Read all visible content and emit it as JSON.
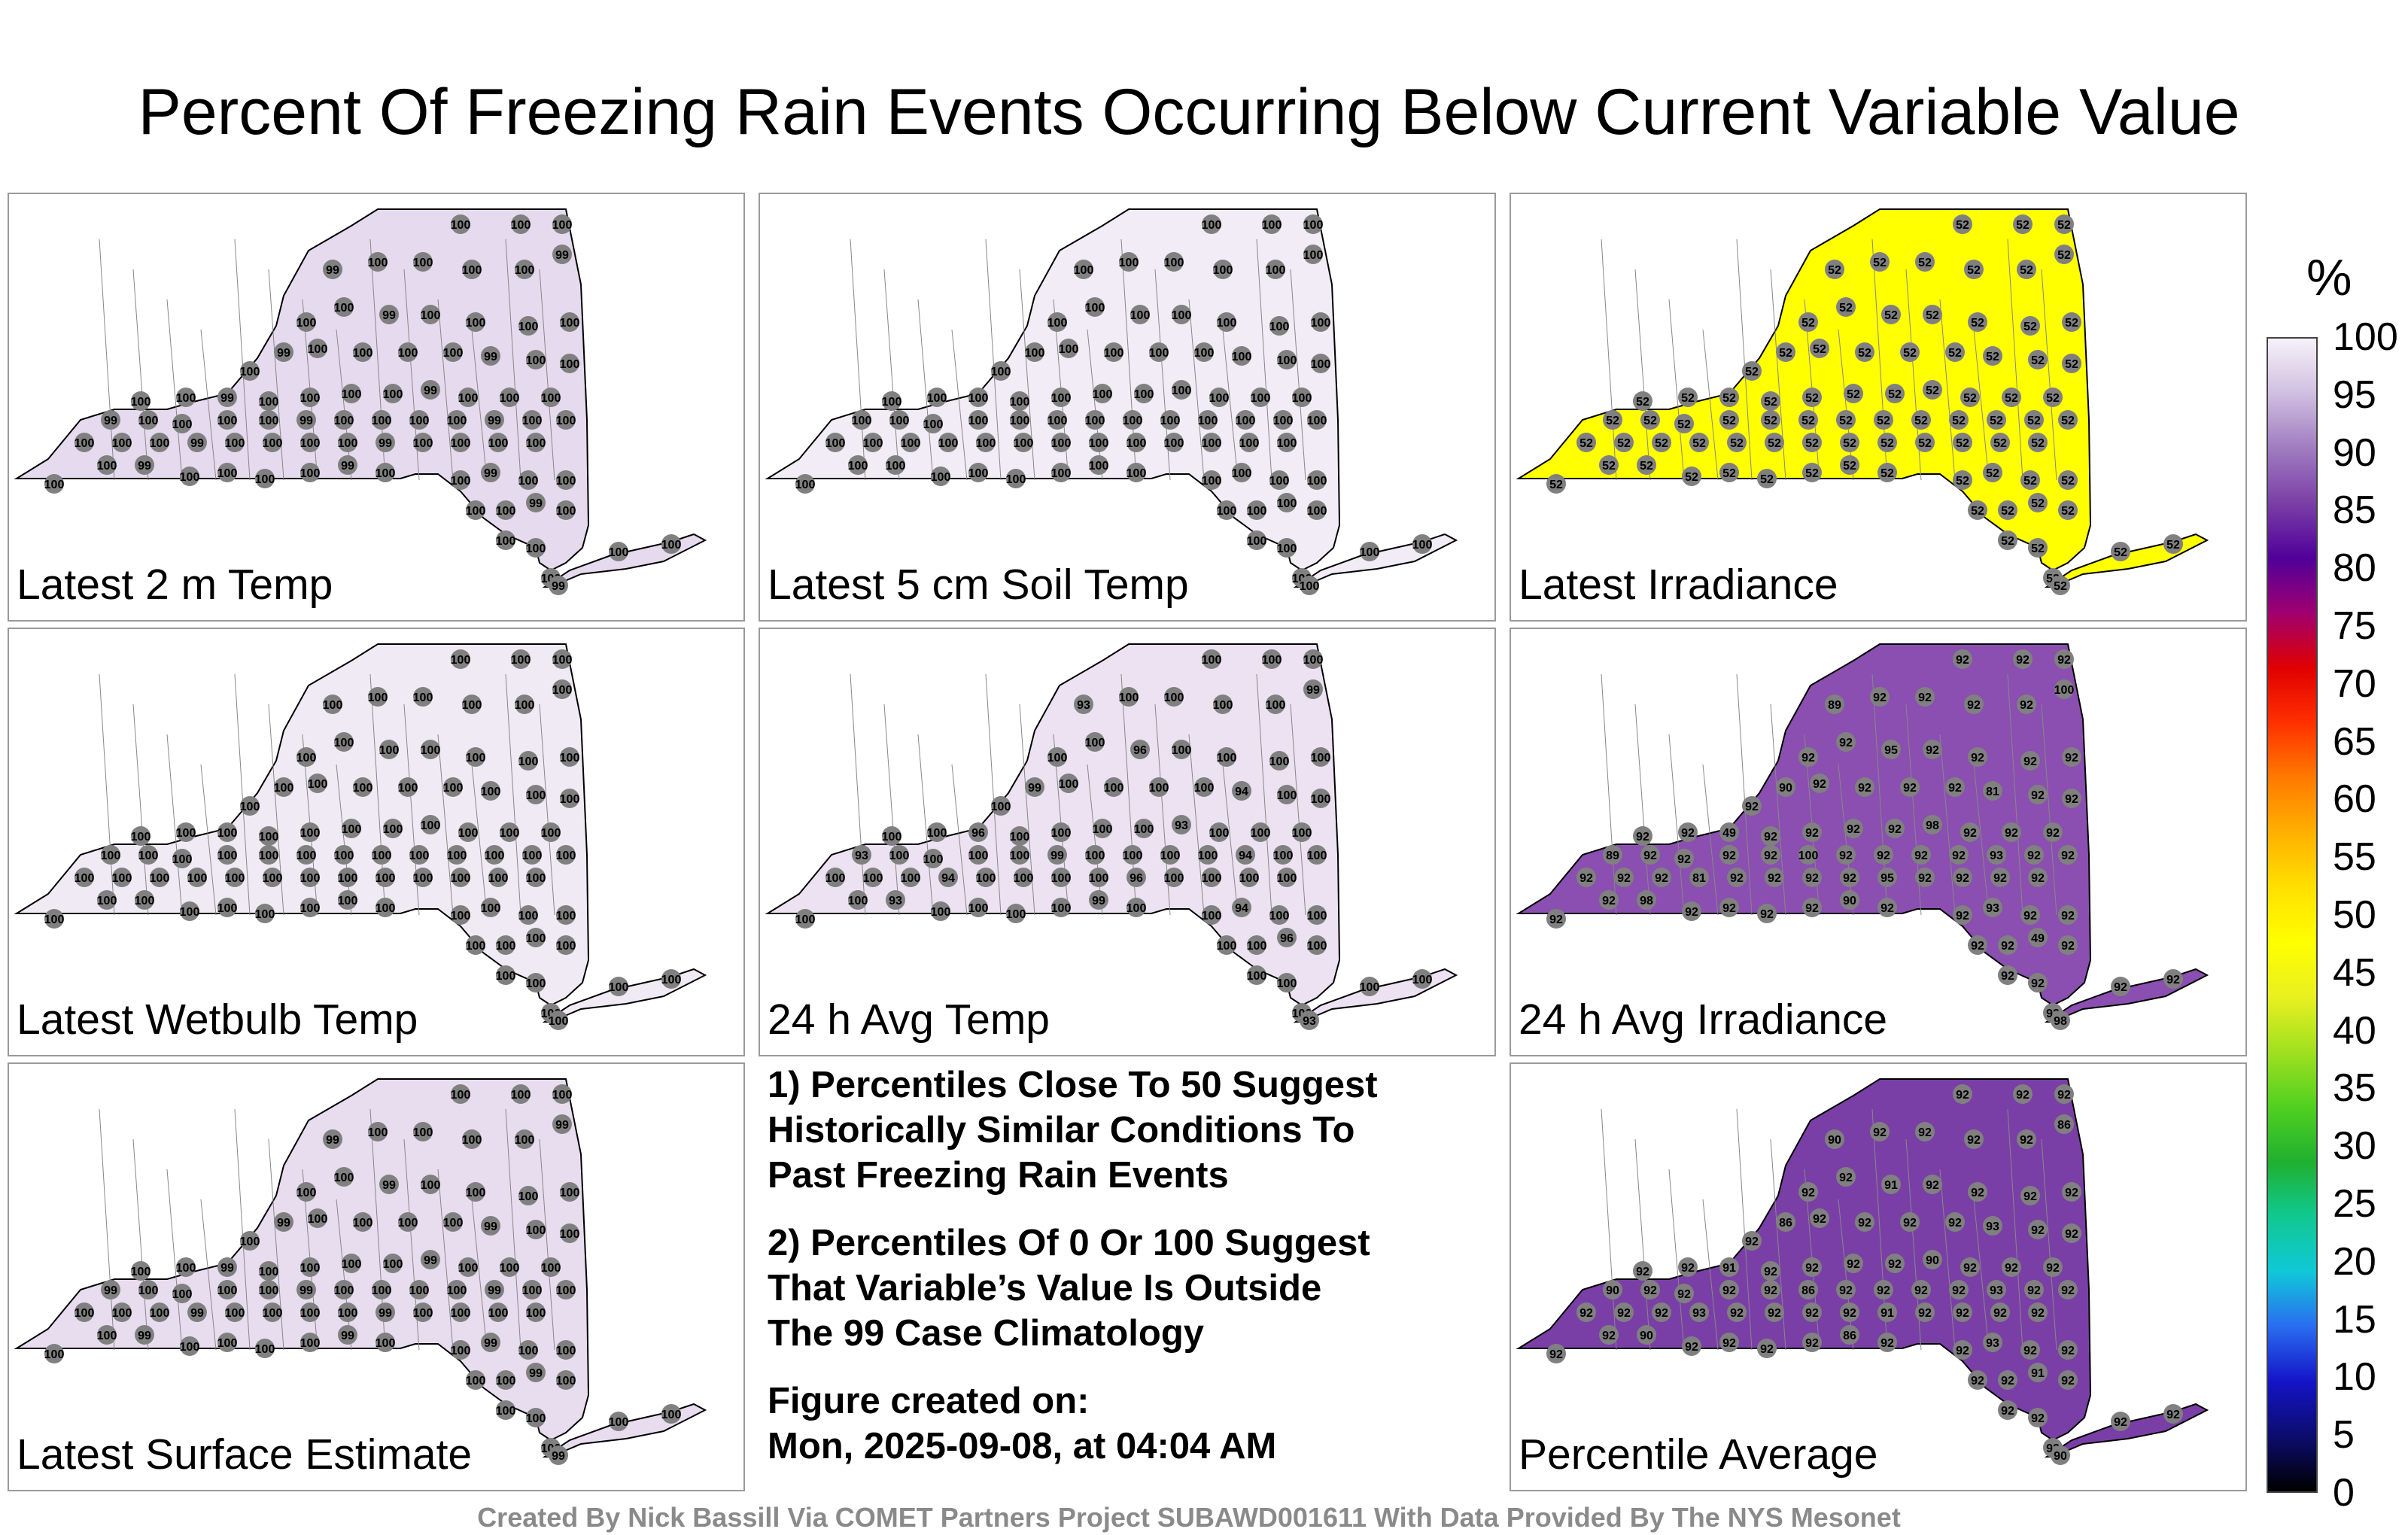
{
  "title": "Percent Of Freezing Rain Events Occurring Below Current Variable Value",
  "panels": [
    {
      "label": "Latest 2 m Temp",
      "fill": "#e6daee",
      "station_value": "100",
      "highlight": [
        "99"
      ]
    },
    {
      "label": "Latest 5 cm Soil Temp",
      "fill": "#f1ecf5",
      "station_value": "100",
      "highlight": []
    },
    {
      "label": "Latest Irradiance",
      "fill": "#ffff00",
      "station_value": "52",
      "highlight": []
    },
    {
      "label": "Latest Wetbulb Temp",
      "fill": "#f0eaf4",
      "station_value": "100",
      "highlight": []
    },
    {
      "label": "24 h Avg Temp",
      "fill": "#ece2f2",
      "station_value": "100",
      "highlight": [
        "94",
        "96",
        "93",
        "99"
      ]
    },
    {
      "label": "24 h Avg Irradiance",
      "fill": "#8a4fb0",
      "station_value": "92",
      "highlight": [
        "93",
        "95",
        "98",
        "100",
        "81",
        "49",
        "89",
        "90"
      ]
    },
    {
      "label": "Latest Surface Estimate",
      "fill": "#e8dcef",
      "station_value": "100",
      "highlight": [
        "99"
      ]
    },
    {
      "label": "Percentile Average",
      "fill": "#7a3fa6",
      "station_value": "92",
      "highlight": [
        "93",
        "91",
        "90",
        "86"
      ]
    }
  ],
  "notes": [
    [
      "1) Percentiles Close To 50 Suggest",
      "Historically Similar Conditions To",
      "Past Freezing Rain Events"
    ],
    [
      "2) Percentiles Of 0 Or 100 Suggest",
      "That Variable’s Value Is Outside",
      "The 99 Case Climatology"
    ],
    [
      "Figure created on:",
      "Mon, 2025-09-08, at 04:04 AM"
    ]
  ],
  "colorbar": {
    "unit": "%",
    "ticks": [
      "100",
      "95",
      "90",
      "85",
      "80",
      "75",
      "70",
      "65",
      "60",
      "55",
      "50",
      "45",
      "40",
      "35",
      "30",
      "25",
      "20",
      "15",
      "10",
      "5",
      "0"
    ],
    "colors": [
      "#000000",
      "#0c0c6e",
      "#1414c8",
      "#2a6cf0",
      "#10c8d8",
      "#10c890",
      "#20b030",
      "#50d020",
      "#a0e020",
      "#e8f020",
      "#ffff00",
      "#ffe000",
      "#ffb000",
      "#ff7a00",
      "#ff3000",
      "#e00000",
      "#a00070",
      "#50009a",
      "#7a3fa6",
      "#a07cc0",
      "#d0bfe0",
      "#f6f2f8"
    ]
  },
  "credit": "Created By Nick Bassill Via COMET Partners Project SUBAWD001611 With Data Provided By The NYS Mesonet"
}
